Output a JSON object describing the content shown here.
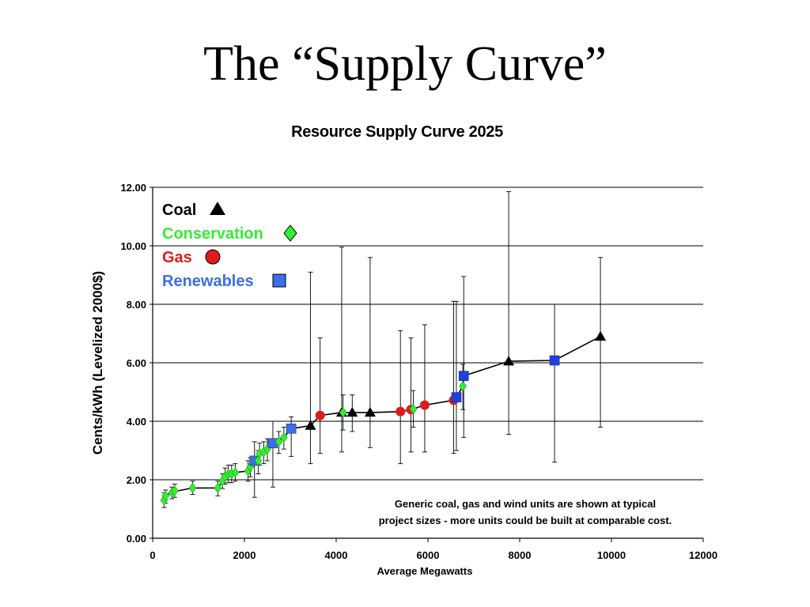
{
  "slide": {
    "title": "The “Supply Curve”"
  },
  "colors": {
    "coal": "#000000",
    "conservation": "#33ee33",
    "gas": "#e01b1b",
    "renewables": "#3b6fe6",
    "renewables_dark": "#1f3fe0",
    "grid": "#000000",
    "line": "#000000"
  },
  "chart_data": {
    "type": "line",
    "title": "Resource Supply Curve 2025",
    "xlabel": "Average Megawatts",
    "ylabel": "Cents/kWh (Levelized 2000$)",
    "xlim": [
      0,
      12000
    ],
    "ylim": [
      0,
      12
    ],
    "x_ticks": [
      0,
      2000,
      4000,
      6000,
      8000,
      10000,
      12000
    ],
    "x_tick_labels": [
      "0",
      "2000",
      "4000",
      "6000",
      "8000",
      "10000",
      "12000"
    ],
    "y_ticks": [
      0,
      2,
      4,
      6,
      8,
      10,
      12
    ],
    "y_tick_labels": [
      "0.00",
      "2.00",
      "4.00",
      "6.00",
      "8.00",
      "10.00",
      "12.00"
    ],
    "grid": "horizontal",
    "legend_position": "top-left",
    "legend": [
      {
        "name": "Coal",
        "marker": "triangle",
        "color_key": "coal"
      },
      {
        "name": "Conservation",
        "marker": "diamond",
        "color_key": "conservation"
      },
      {
        "name": "Gas",
        "marker": "circle",
        "color_key": "gas"
      },
      {
        "name": "Renewables",
        "marker": "square",
        "color_key": "renewables"
      }
    ],
    "annotation": [
      "Generic coal, gas and wind units are shown at typical",
      "project sizes - more units could be built at comparable cost."
    ],
    "points": [
      {
        "x": 250,
        "y": 1.3,
        "type": "conservation",
        "lo": 1.05,
        "hi": 1.55
      },
      {
        "x": 280,
        "y": 1.45,
        "type": "conservation",
        "lo": 1.2,
        "hi": 1.65
      },
      {
        "x": 420,
        "y": 1.55,
        "type": "conservation",
        "lo": 1.35,
        "hi": 1.75
      },
      {
        "x": 480,
        "y": 1.62,
        "type": "conservation",
        "lo": 1.4,
        "hi": 1.85
      },
      {
        "x": 870,
        "y": 1.72,
        "type": "conservation",
        "lo": 1.5,
        "hi": 1.95
      },
      {
        "x": 1420,
        "y": 1.72,
        "type": "conservation",
        "lo": 1.45,
        "hi": 1.95
      },
      {
        "x": 1520,
        "y": 1.95,
        "type": "conservation",
        "lo": 1.7,
        "hi": 2.2
      },
      {
        "x": 1580,
        "y": 2.12,
        "type": "conservation",
        "lo": 1.85,
        "hi": 2.4
      },
      {
        "x": 1650,
        "y": 2.2,
        "type": "conservation",
        "lo": 1.9,
        "hi": 2.5
      },
      {
        "x": 1720,
        "y": 2.2,
        "type": "conservation",
        "lo": 1.9,
        "hi": 2.5
      },
      {
        "x": 1800,
        "y": 2.25,
        "type": "conservation",
        "lo": 1.95,
        "hi": 2.55
      },
      {
        "x": 2080,
        "y": 2.3,
        "type": "conservation",
        "lo": 1.95,
        "hi": 2.65
      },
      {
        "x": 2130,
        "y": 2.45,
        "type": "conservation",
        "lo": 2.1,
        "hi": 2.75
      },
      {
        "x": 2220,
        "y": 2.65,
        "type": "renewables",
        "lo": 1.4,
        "hi": 3.3
      },
      {
        "x": 2300,
        "y": 2.65,
        "type": "conservation",
        "lo": 2.2,
        "hi": 3.0
      },
      {
        "x": 2330,
        "y": 2.9,
        "type": "conservation",
        "lo": 2.5,
        "hi": 3.25
      },
      {
        "x": 2420,
        "y": 2.95,
        "type": "conservation",
        "lo": 2.55,
        "hi": 3.3
      },
      {
        "x": 2500,
        "y": 3.05,
        "type": "conservation",
        "lo": 2.65,
        "hi": 3.4
      },
      {
        "x": 2620,
        "y": 3.25,
        "type": "renewables",
        "lo": 1.75,
        "hi": 4.0
      },
      {
        "x": 2750,
        "y": 3.3,
        "type": "conservation",
        "lo": 2.9,
        "hi": 3.65
      },
      {
        "x": 2860,
        "y": 3.45,
        "type": "conservation",
        "lo": 3.05,
        "hi": 3.8
      },
      {
        "x": 3020,
        "y": 3.75,
        "type": "renewables",
        "lo": 2.8,
        "hi": 4.15
      },
      {
        "x": 3440,
        "y": 3.85,
        "type": "coal",
        "lo": 2.55,
        "hi": 9.1
      },
      {
        "x": 3650,
        "y": 4.2,
        "type": "gas",
        "lo": 2.9,
        "hi": 6.85
      },
      {
        "x": 4120,
        "y": 4.3,
        "type": "coal",
        "lo": 2.95,
        "hi": 9.95
      },
      {
        "x": 4150,
        "y": 4.3,
        "type": "conservation",
        "lo": 3.7,
        "hi": 4.9
      },
      {
        "x": 4350,
        "y": 4.3,
        "type": "coal",
        "lo": 3.65,
        "hi": 4.9
      },
      {
        "x": 4740,
        "y": 4.3,
        "type": "coal",
        "lo": 3.1,
        "hi": 9.6
      },
      {
        "x": 5400,
        "y": 4.33,
        "type": "gas",
        "lo": 2.55,
        "hi": 7.1
      },
      {
        "x": 5630,
        "y": 4.4,
        "type": "gas",
        "lo": 2.95,
        "hi": 6.85
      },
      {
        "x": 5680,
        "y": 4.42,
        "type": "conservation",
        "lo": 3.8,
        "hi": 5.05
      },
      {
        "x": 5930,
        "y": 4.55,
        "type": "gas",
        "lo": 2.95,
        "hi": 7.3
      },
      {
        "x": 6560,
        "y": 4.72,
        "type": "gas",
        "lo": 2.9,
        "hi": 8.1
      },
      {
        "x": 6620,
        "y": 4.82,
        "type": "renewables_dark",
        "lo": 3.0,
        "hi": 8.1
      },
      {
        "x": 6760,
        "y": 5.2,
        "type": "conservation",
        "lo": 4.4,
        "hi": 5.95
      },
      {
        "x": 6780,
        "y": 5.55,
        "type": "renewables_dark",
        "lo": 3.45,
        "hi": 8.95
      },
      {
        "x": 7760,
        "y": 6.05,
        "type": "coal",
        "lo": 3.55,
        "hi": 11.85
      },
      {
        "x": 8760,
        "y": 6.08,
        "type": "renewables_dark",
        "lo": 2.6,
        "hi": 8.0
      },
      {
        "x": 9760,
        "y": 6.9,
        "type": "coal",
        "lo": 3.8,
        "hi": 9.6
      }
    ],
    "curve": [
      {
        "x": 250,
        "y": 1.3
      },
      {
        "x": 280,
        "y": 1.45
      },
      {
        "x": 420,
        "y": 1.58
      },
      {
        "x": 870,
        "y": 1.72
      },
      {
        "x": 1420,
        "y": 1.72
      },
      {
        "x": 1520,
        "y": 1.95
      },
      {
        "x": 1580,
        "y": 2.12
      },
      {
        "x": 1800,
        "y": 2.25
      },
      {
        "x": 2080,
        "y": 2.3
      },
      {
        "x": 2220,
        "y": 2.65
      },
      {
        "x": 2330,
        "y": 2.9
      },
      {
        "x": 2500,
        "y": 3.05
      },
      {
        "x": 2620,
        "y": 3.25
      },
      {
        "x": 2860,
        "y": 3.45
      },
      {
        "x": 3020,
        "y": 3.75
      },
      {
        "x": 3440,
        "y": 3.85
      },
      {
        "x": 3650,
        "y": 4.2
      },
      {
        "x": 4120,
        "y": 4.3
      },
      {
        "x": 4740,
        "y": 4.3
      },
      {
        "x": 5400,
        "y": 4.33
      },
      {
        "x": 5630,
        "y": 4.4
      },
      {
        "x": 5930,
        "y": 4.55
      },
      {
        "x": 6560,
        "y": 4.72
      },
      {
        "x": 6620,
        "y": 4.82
      },
      {
        "x": 6760,
        "y": 5.2
      },
      {
        "x": 6780,
        "y": 5.55
      },
      {
        "x": 7760,
        "y": 6.05
      },
      {
        "x": 8760,
        "y": 6.08
      },
      {
        "x": 9760,
        "y": 6.9
      }
    ]
  }
}
